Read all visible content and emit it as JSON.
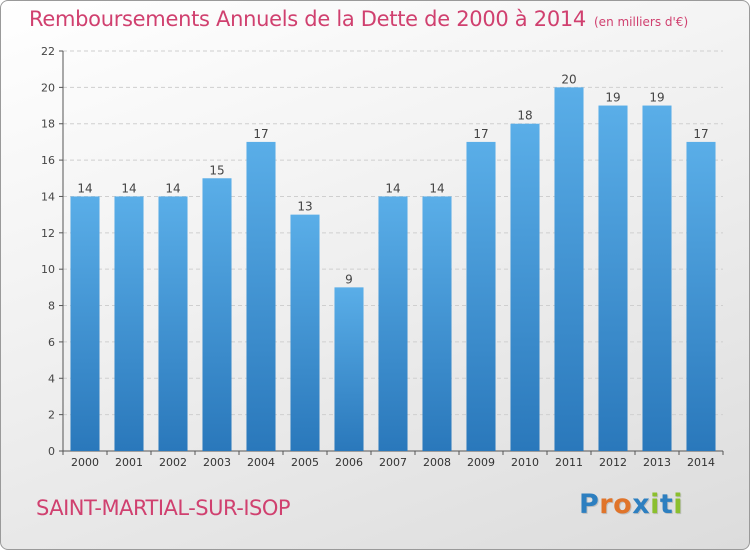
{
  "header": {
    "title": "Remboursements Annuels de la Dette de 2000 à 2014",
    "unit": "(en milliers d'€)"
  },
  "footer": {
    "place": "SAINT-MARTIAL-SUR-ISOP",
    "brand": "Proxiti"
  },
  "colors": {
    "accent": "#d0406f",
    "bar_light": "#5aaee8",
    "bar_dark": "#2a78bb",
    "brand_letters": [
      "#2d7fc0",
      "#e0742a",
      "#e0742a",
      "#2d7fc0",
      "#8bbf2e",
      "#2d7fc0",
      "#8bbf2e"
    ]
  },
  "chart_data": {
    "type": "bar",
    "title": "Remboursements Annuels de la Dette de 2000 à 2014",
    "subtitle": "(en milliers d'€)",
    "xlabel": "",
    "ylabel": "",
    "categories": [
      "2000",
      "2001",
      "2002",
      "2003",
      "2004",
      "2005",
      "2006",
      "2007",
      "2008",
      "2009",
      "2010",
      "2011",
      "2012",
      "2013",
      "2014"
    ],
    "values": [
      14,
      14,
      14,
      15,
      17,
      13,
      9,
      14,
      14,
      17,
      18,
      20,
      19,
      19,
      17
    ],
    "ylim": [
      0,
      22
    ],
    "yticks": [
      0,
      2,
      4,
      6,
      8,
      10,
      12,
      14,
      16,
      18,
      20,
      22
    ],
    "grid": true,
    "legend": "none"
  }
}
